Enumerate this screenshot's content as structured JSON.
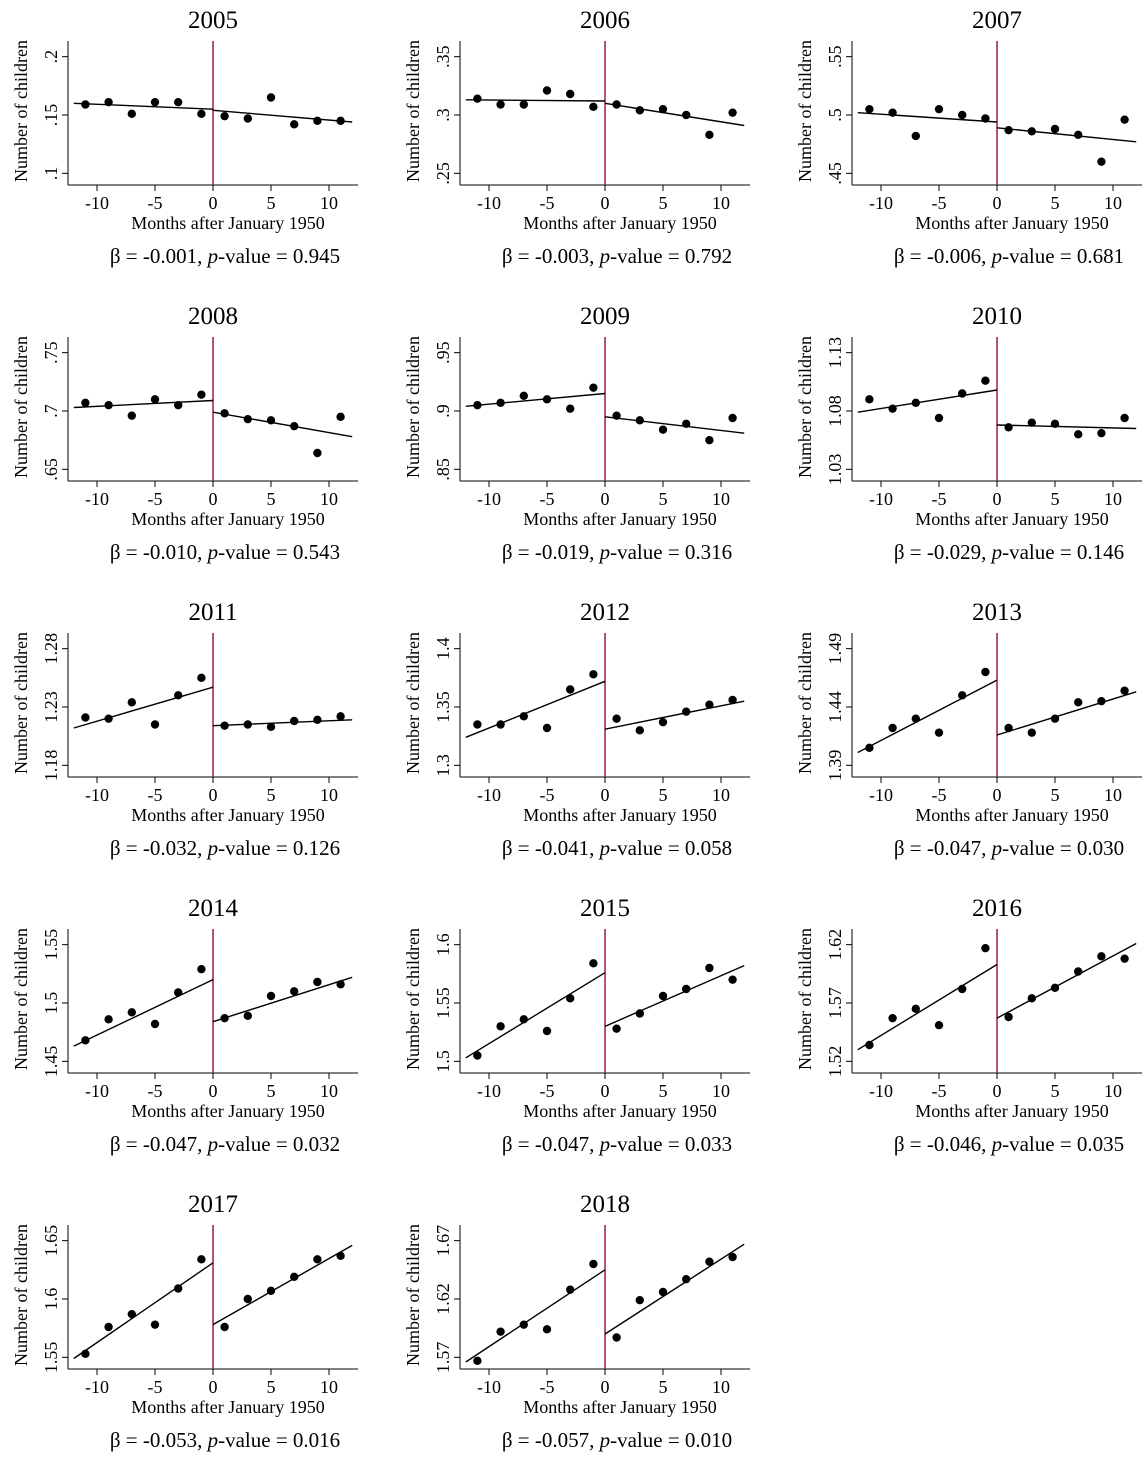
{
  "chart_data": [
    {
      "type": "scatter",
      "title": "2005",
      "xlabel": "Months after January 1950",
      "ylabel": "Number of children",
      "caption": {
        "beta_label": "β = -0.001,",
        "p_label": "p",
        "p_rest": "-value =  0.945"
      },
      "xticks": [
        -10,
        -5,
        0,
        5,
        10
      ],
      "xlim": [
        -12.5,
        12.5
      ],
      "yticks": [
        0.1,
        0.15,
        0.2
      ],
      "ytick_labels": [
        ".1",
        ".15",
        ".2"
      ],
      "ylim": [
        0.09,
        0.21
      ],
      "cutoff": 0,
      "x": [
        -11,
        -9,
        -7,
        -5,
        -3,
        -1,
        1,
        3,
        5,
        7,
        9,
        11
      ],
      "y": [
        0.159,
        0.161,
        0.151,
        0.161,
        0.161,
        0.151,
        0.149,
        0.147,
        0.165,
        0.142,
        0.145,
        0.145
      ],
      "fit_left": {
        "x": [
          -12,
          0
        ],
        "y": [
          0.16,
          0.155
        ]
      },
      "fit_right": {
        "x": [
          0,
          12
        ],
        "y": [
          0.154,
          0.144
        ]
      }
    },
    {
      "type": "scatter",
      "title": "2006",
      "xlabel": "Months after January 1950",
      "ylabel": "Number of children",
      "caption": {
        "beta_label": "β = -0.003,",
        "p_label": "p",
        "p_rest": "-value =  0.792"
      },
      "xticks": [
        -10,
        -5,
        0,
        5,
        10
      ],
      "xlim": [
        -12.5,
        12.5
      ],
      "yticks": [
        0.25,
        0.3,
        0.35
      ],
      "ytick_labels": [
        ".25",
        ".3",
        ".35"
      ],
      "ylim": [
        0.24,
        0.36
      ],
      "cutoff": 0,
      "x": [
        -11,
        -9,
        -7,
        -5,
        -3,
        -1,
        1,
        3,
        5,
        7,
        9,
        11
      ],
      "y": [
        0.314,
        0.309,
        0.309,
        0.321,
        0.318,
        0.307,
        0.309,
        0.304,
        0.305,
        0.3,
        0.283,
        0.302
      ],
      "fit_left": {
        "x": [
          -12,
          0
        ],
        "y": [
          0.313,
          0.312
        ]
      },
      "fit_right": {
        "x": [
          0,
          12
        ],
        "y": [
          0.31,
          0.291
        ]
      }
    },
    {
      "type": "scatter",
      "title": "2007",
      "xlabel": "Months after January 1950",
      "ylabel": "Number of children",
      "caption": {
        "beta_label": "β = -0.006,",
        "p_label": "p",
        "p_rest": "-value =  0.681"
      },
      "xticks": [
        -10,
        -5,
        0,
        5,
        10
      ],
      "xlim": [
        -12.5,
        12.5
      ],
      "yticks": [
        0.45,
        0.5,
        0.55
      ],
      "ytick_labels": [
        ".45",
        ".5",
        ".55"
      ],
      "ylim": [
        0.44,
        0.56
      ],
      "cutoff": 0,
      "x": [
        -11,
        -9,
        -7,
        -5,
        -3,
        -1,
        1,
        3,
        5,
        7,
        9,
        11
      ],
      "y": [
        0.505,
        0.502,
        0.482,
        0.505,
        0.5,
        0.497,
        0.487,
        0.486,
        0.488,
        0.483,
        0.46,
        0.496
      ],
      "fit_left": {
        "x": [
          -12,
          0
        ],
        "y": [
          0.502,
          0.494
        ]
      },
      "fit_right": {
        "x": [
          0,
          12
        ],
        "y": [
          0.489,
          0.477
        ]
      }
    },
    {
      "type": "scatter",
      "title": "2008",
      "xlabel": "Months after January 1950",
      "ylabel": "Number of children",
      "caption": {
        "beta_label": "β = -0.010,",
        "p_label": "p",
        "p_rest": "-value =  0.543"
      },
      "xticks": [
        -10,
        -5,
        0,
        5,
        10
      ],
      "xlim": [
        -12.5,
        12.5
      ],
      "yticks": [
        0.65,
        0.7,
        0.75
      ],
      "ytick_labels": [
        ".65",
        ".7",
        ".75"
      ],
      "ylim": [
        0.64,
        0.76
      ],
      "cutoff": 0,
      "x": [
        -11,
        -9,
        -7,
        -5,
        -3,
        -1,
        1,
        3,
        5,
        7,
        9,
        11
      ],
      "y": [
        0.707,
        0.705,
        0.696,
        0.71,
        0.705,
        0.714,
        0.698,
        0.693,
        0.692,
        0.687,
        0.664,
        0.695
      ],
      "fit_left": {
        "x": [
          -12,
          0
        ],
        "y": [
          0.703,
          0.709
        ]
      },
      "fit_right": {
        "x": [
          0,
          12
        ],
        "y": [
          0.699,
          0.678
        ]
      }
    },
    {
      "type": "scatter",
      "title": "2009",
      "xlabel": "Months after January 1950",
      "ylabel": "Number of children",
      "caption": {
        "beta_label": "β = -0.019,",
        "p_label": "p",
        "p_rest": "-value =  0.316"
      },
      "xticks": [
        -10,
        -5,
        0,
        5,
        10
      ],
      "xlim": [
        -12.5,
        12.5
      ],
      "yticks": [
        0.85,
        0.9,
        0.95
      ],
      "ytick_labels": [
        ".85",
        ".9",
        ".95"
      ],
      "ylim": [
        0.84,
        0.96
      ],
      "cutoff": 0,
      "x": [
        -11,
        -9,
        -7,
        -5,
        -3,
        -1,
        1,
        3,
        5,
        7,
        9,
        11
      ],
      "y": [
        0.905,
        0.907,
        0.913,
        0.91,
        0.902,
        0.92,
        0.896,
        0.892,
        0.884,
        0.889,
        0.875,
        0.894
      ],
      "fit_left": {
        "x": [
          -12,
          0
        ],
        "y": [
          0.904,
          0.915
        ]
      },
      "fit_right": {
        "x": [
          0,
          12
        ],
        "y": [
          0.895,
          0.881
        ]
      }
    },
    {
      "type": "scatter",
      "title": "2010",
      "xlabel": "Months after January 1950",
      "ylabel": "Number of children",
      "caption": {
        "beta_label": "β = -0.029,",
        "p_label": "p",
        "p_rest": "-value =  0.146"
      },
      "xticks": [
        -10,
        -5,
        0,
        5,
        10
      ],
      "xlim": [
        -12.5,
        12.5
      ],
      "yticks": [
        1.03,
        1.08,
        1.13
      ],
      "ytick_labels": [
        "1.03",
        "1.08",
        "1.13"
      ],
      "ylim": [
        1.02,
        1.14
      ],
      "cutoff": 0,
      "x": [
        -11,
        -9,
        -7,
        -5,
        -3,
        -1,
        1,
        3,
        5,
        7,
        9,
        11
      ],
      "y": [
        1.09,
        1.082,
        1.087,
        1.074,
        1.095,
        1.106,
        1.066,
        1.07,
        1.069,
        1.06,
        1.061,
        1.074
      ],
      "fit_left": {
        "x": [
          -12,
          0
        ],
        "y": [
          1.079,
          1.098
        ]
      },
      "fit_right": {
        "x": [
          0,
          12
        ],
        "y": [
          1.068,
          1.065
        ]
      }
    },
    {
      "type": "scatter",
      "title": "2011",
      "xlabel": "Months after January 1950",
      "ylabel": "Number of children",
      "caption": {
        "beta_label": "β = -0.032,",
        "p_label": "p",
        "p_rest": "-value =  0.126"
      },
      "xticks": [
        -10,
        -5,
        0,
        5,
        10
      ],
      "xlim": [
        -12.5,
        12.5
      ],
      "yticks": [
        1.18,
        1.23,
        1.28
      ],
      "ytick_labels": [
        "1.18",
        "1.23",
        "1.28"
      ],
      "ylim": [
        1.17,
        1.29
      ],
      "cutoff": 0,
      "x": [
        -11,
        -9,
        -7,
        -5,
        -3,
        -1,
        1,
        3,
        5,
        7,
        9,
        11
      ],
      "y": [
        1.221,
        1.22,
        1.234,
        1.215,
        1.24,
        1.255,
        1.214,
        1.215,
        1.213,
        1.218,
        1.219,
        1.222
      ],
      "fit_left": {
        "x": [
          -12,
          0
        ],
        "y": [
          1.212,
          1.247
        ]
      },
      "fit_right": {
        "x": [
          0,
          12
        ],
        "y": [
          1.214,
          1.219
        ]
      }
    },
    {
      "type": "scatter",
      "title": "2012",
      "xlabel": "Months after January 1950",
      "ylabel": "Number of children",
      "caption": {
        "beta_label": "β = -0.041,",
        "p_label": "p",
        "p_rest": "-value =  0.058"
      },
      "xticks": [
        -10,
        -5,
        0,
        5,
        10
      ],
      "xlim": [
        -12.5,
        12.5
      ],
      "yticks": [
        1.3,
        1.35,
        1.4
      ],
      "ytick_labels": [
        "1.3",
        "1.35",
        "1.4"
      ],
      "ylim": [
        1.29,
        1.41
      ],
      "cutoff": 0,
      "x": [
        -11,
        -9,
        -7,
        -5,
        -3,
        -1,
        1,
        3,
        5,
        7,
        9,
        11
      ],
      "y": [
        1.335,
        1.335,
        1.342,
        1.332,
        1.365,
        1.378,
        1.34,
        1.33,
        1.337,
        1.346,
        1.352,
        1.356
      ],
      "fit_left": {
        "x": [
          -12,
          0
        ],
        "y": [
          1.324,
          1.372
        ]
      },
      "fit_right": {
        "x": [
          0,
          12
        ],
        "y": [
          1.331,
          1.355
        ]
      }
    },
    {
      "type": "scatter",
      "title": "2013",
      "xlabel": "Months after January 1950",
      "ylabel": "Number of children",
      "caption": {
        "beta_label": "β = -0.047,",
        "p_label": "p",
        "p_rest": "-value =  0.030"
      },
      "xticks": [
        -10,
        -5,
        0,
        5,
        10
      ],
      "xlim": [
        -12.5,
        12.5
      ],
      "yticks": [
        1.39,
        1.44,
        1.49
      ],
      "ytick_labels": [
        "1.39",
        "1.44",
        "1.49"
      ],
      "ylim": [
        1.38,
        1.5
      ],
      "cutoff": 0,
      "x": [
        -11,
        -9,
        -7,
        -5,
        -3,
        -1,
        1,
        3,
        5,
        7,
        9,
        11
      ],
      "y": [
        1.405,
        1.422,
        1.43,
        1.418,
        1.45,
        1.47,
        1.422,
        1.418,
        1.43,
        1.444,
        1.445,
        1.454
      ],
      "fit_left": {
        "x": [
          -12,
          0
        ],
        "y": [
          1.401,
          1.463
        ]
      },
      "fit_right": {
        "x": [
          0,
          12
        ],
        "y": [
          1.416,
          1.453
        ]
      }
    },
    {
      "type": "scatter",
      "title": "2014",
      "xlabel": "Months after January 1950",
      "ylabel": "Number of children",
      "caption": {
        "beta_label": "β = -0.047,",
        "p_label": "p",
        "p_rest": "-value =  0.032"
      },
      "xticks": [
        -10,
        -5,
        0,
        5,
        10
      ],
      "xlim": [
        -12.5,
        12.5
      ],
      "yticks": [
        1.45,
        1.5,
        1.55
      ],
      "ytick_labels": [
        "1.45",
        "1.5",
        "1.55"
      ],
      "ylim": [
        1.44,
        1.56
      ],
      "cutoff": 0,
      "x": [
        -11,
        -9,
        -7,
        -5,
        -3,
        -1,
        1,
        3,
        5,
        7,
        9,
        11
      ],
      "y": [
        1.468,
        1.486,
        1.492,
        1.482,
        1.509,
        1.529,
        1.487,
        1.489,
        1.506,
        1.51,
        1.518,
        1.516
      ],
      "fit_left": {
        "x": [
          -12,
          0
        ],
        "y": [
          1.463,
          1.52
        ]
      },
      "fit_right": {
        "x": [
          0,
          12
        ],
        "y": [
          1.484,
          1.522
        ]
      }
    },
    {
      "type": "scatter",
      "title": "2015",
      "xlabel": "Months after January 1950",
      "ylabel": "Number of children",
      "caption": {
        "beta_label": "β = -0.047,",
        "p_label": "p",
        "p_rest": "-value =  0.033"
      },
      "xticks": [
        -10,
        -5,
        0,
        5,
        10
      ],
      "xlim": [
        -12.5,
        12.5
      ],
      "yticks": [
        1.5,
        1.55,
        1.6
      ],
      "ytick_labels": [
        "1.5",
        "1.55",
        "1.6"
      ],
      "ylim": [
        1.49,
        1.61
      ],
      "cutoff": 0,
      "x": [
        -11,
        -9,
        -7,
        -5,
        -3,
        -1,
        1,
        3,
        5,
        7,
        9,
        11
      ],
      "y": [
        1.505,
        1.53,
        1.536,
        1.526,
        1.554,
        1.584,
        1.528,
        1.541,
        1.556,
        1.562,
        1.58,
        1.57
      ],
      "fit_left": {
        "x": [
          -12,
          0
        ],
        "y": [
          1.503,
          1.576
        ]
      },
      "fit_right": {
        "x": [
          0,
          12
        ],
        "y": [
          1.53,
          1.582
        ]
      }
    },
    {
      "type": "scatter",
      "title": "2016",
      "xlabel": "Months after January 1950",
      "ylabel": "Number of children",
      "caption": {
        "beta_label": "β = -0.046,",
        "p_label": "p",
        "p_rest": "-value =  0.035"
      },
      "xticks": [
        -10,
        -5,
        0,
        5,
        10
      ],
      "xlim": [
        -12.5,
        12.5
      ],
      "yticks": [
        1.52,
        1.57,
        1.62
      ],
      "ytick_labels": [
        "1.52",
        "1.57",
        "1.62"
      ],
      "ylim": [
        1.51,
        1.63
      ],
      "cutoff": 0,
      "x": [
        -11,
        -9,
        -7,
        -5,
        -3,
        -1,
        1,
        3,
        5,
        7,
        9,
        11
      ],
      "y": [
        1.534,
        1.557,
        1.565,
        1.551,
        1.582,
        1.617,
        1.558,
        1.574,
        1.583,
        1.597,
        1.61,
        1.608
      ],
      "fit_left": {
        "x": [
          -12,
          0
        ],
        "y": [
          1.53,
          1.603
        ]
      },
      "fit_right": {
        "x": [
          0,
          12
        ],
        "y": [
          1.557,
          1.621
        ]
      }
    },
    {
      "type": "scatter",
      "title": "2017",
      "xlabel": "Months after January 1950",
      "ylabel": "Number of children",
      "caption": {
        "beta_label": "β = -0.053,",
        "p_label": "p",
        "p_rest": "-value =  0.016"
      },
      "xticks": [
        -10,
        -5,
        0,
        5,
        10
      ],
      "xlim": [
        -12.5,
        12.5
      ],
      "yticks": [
        1.55,
        1.6,
        1.65
      ],
      "ytick_labels": [
        "1.55",
        "1.6",
        "1.65"
      ],
      "ylim": [
        1.54,
        1.66
      ],
      "cutoff": 0,
      "x": [
        -11,
        -9,
        -7,
        -5,
        -3,
        -1,
        1,
        3,
        5,
        7,
        9,
        11
      ],
      "y": [
        1.553,
        1.576,
        1.587,
        1.578,
        1.609,
        1.634,
        1.576,
        1.6,
        1.607,
        1.619,
        1.634,
        1.637
      ],
      "fit_left": {
        "x": [
          -12,
          0
        ],
        "y": [
          1.549,
          1.631
        ]
      },
      "fit_right": {
        "x": [
          0,
          12
        ],
        "y": [
          1.578,
          1.646
        ]
      }
    },
    {
      "type": "scatter",
      "title": "2018",
      "xlabel": "Months after January 1950",
      "ylabel": "Number of children",
      "caption": {
        "beta_label": "β = -0.057,",
        "p_label": "p",
        "p_rest": "-value =  0.010"
      },
      "xticks": [
        -10,
        -5,
        0,
        5,
        10
      ],
      "xlim": [
        -12.5,
        12.5
      ],
      "yticks": [
        1.57,
        1.62,
        1.67
      ],
      "ytick_labels": [
        "1.57",
        "1.62",
        "1.67"
      ],
      "ylim": [
        1.56,
        1.68
      ],
      "cutoff": 0,
      "x": [
        -11,
        -9,
        -7,
        -5,
        -3,
        -1,
        1,
        3,
        5,
        7,
        9,
        11
      ],
      "y": [
        1.567,
        1.592,
        1.598,
        1.594,
        1.628,
        1.65,
        1.587,
        1.619,
        1.626,
        1.637,
        1.652,
        1.656
      ],
      "fit_left": {
        "x": [
          -12,
          0
        ],
        "y": [
          1.566,
          1.645
        ]
      },
      "fit_right": {
        "x": [
          0,
          12
        ],
        "y": [
          1.59,
          1.667
        ]
      }
    }
  ],
  "colors": {
    "cutoff_line": "#9c1b4b",
    "markers": "#000000",
    "fit_line": "#000000",
    "axis": "#000000"
  }
}
